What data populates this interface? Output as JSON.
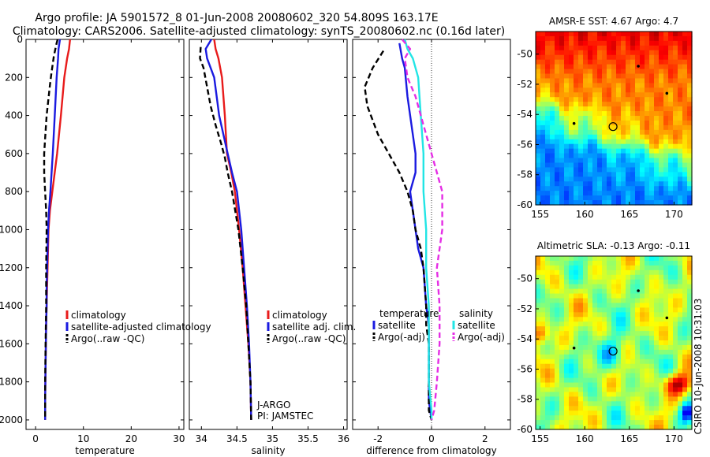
{
  "figure": {
    "title_line1": "Argo profile: JA 5901572_8 01-Jun-2008 20080602_320 54.809S 163.17E",
    "title_line2": "Climatology: CARS2006. Satellite-adjusted climatology: synTS_20080602.nc (0.16d later)",
    "side_label": "CSIRO 10-Jun-2008 10:31:03"
  },
  "colors": {
    "climatology": "#e81b1b",
    "satellite": "#1a1ae0",
    "argo": "#000000",
    "satellite_salinity": "#22e5e5",
    "argo_salinity_diff": "#e52ee5"
  },
  "chart_data": [
    {
      "type": "line",
      "id": "temperature",
      "xlabel": "temperature",
      "ylabel": "",
      "xlim": [
        -2,
        31
      ],
      "ylim": [
        2050,
        0
      ],
      "xticks": [
        0,
        10,
        20,
        30
      ],
      "yticks": [
        0,
        200,
        400,
        600,
        800,
        1000,
        1200,
        1400,
        1600,
        1800,
        2000
      ],
      "legend": [
        "climatology",
        "satellite-adjusted climatology",
        "Argo(..raw -QC)"
      ],
      "series": [
        {
          "name": "climatology",
          "role": "climatology",
          "x": [
            7.2,
            7.0,
            6.6,
            6.0,
            5.3,
            4.5,
            3.5,
            3.0,
            2.7,
            2.6,
            2.5,
            2.4,
            2.3,
            2.2,
            2.1,
            2.0,
            2.0
          ],
          "y": [
            0,
            50,
            100,
            200,
            400,
            600,
            800,
            900,
            1000,
            1100,
            1200,
            1300,
            1400,
            1500,
            1700,
            1900,
            2000
          ]
        },
        {
          "name": "satellite-adjusted climatology",
          "role": "satellite",
          "x": [
            5.1,
            4.8,
            4.7,
            4.4,
            4.0,
            3.6,
            3.1,
            2.8,
            2.6,
            2.5,
            2.4,
            2.3,
            2.3,
            2.2,
            2.1,
            2.0,
            2.0
          ],
          "y": [
            0,
            50,
            100,
            200,
            400,
            600,
            800,
            900,
            1000,
            1100,
            1200,
            1300,
            1400,
            1500,
            1700,
            1900,
            2000
          ]
        },
        {
          "name": "Argo(..raw -QC)",
          "role": "argo",
          "dashed": true,
          "x": [
            4.6,
            4.3,
            3.8,
            3.3,
            3.0,
            2.3,
            2.0,
            1.8,
            1.8,
            2.0,
            2.2,
            2.3,
            2.2,
            2.2,
            2.1,
            2.0,
            2.0,
            2.0,
            2.0
          ],
          "y": [
            0,
            30,
            90,
            180,
            240,
            400,
            520,
            600,
            700,
            800,
            900,
            1000,
            1200,
            1400,
            1600,
            1800,
            1900,
            1950,
            2000
          ]
        }
      ]
    },
    {
      "type": "line",
      "id": "salinity",
      "xlabel": "salinity",
      "ylabel": "",
      "xlim": [
        33.83,
        36.05
      ],
      "ylim": [
        2050,
        0
      ],
      "xticks": [
        34,
        34.5,
        35,
        35.5,
        36
      ],
      "legend": [
        "climatology",
        "satellite adj. clim.",
        "Argo(..raw -QC)"
      ],
      "annotations": [
        "J-ARGO",
        "PI: JAMSTEC"
      ],
      "series": [
        {
          "name": "climatology",
          "role": "climatology",
          "x": [
            34.18,
            34.2,
            34.24,
            34.29,
            34.33,
            34.36,
            34.42,
            34.47,
            34.53,
            34.58,
            34.62,
            34.66,
            34.69,
            34.7
          ],
          "y": [
            0,
            50,
            100,
            200,
            400,
            600,
            700,
            800,
            1000,
            1200,
            1400,
            1600,
            1800,
            2000
          ]
        },
        {
          "name": "satellite adj. clim.",
          "role": "satellite",
          "x": [
            34.14,
            34.06,
            34.08,
            34.18,
            34.25,
            34.31,
            34.37,
            34.43,
            34.5,
            34.56,
            34.6,
            34.64,
            34.67,
            34.69,
            34.7
          ],
          "y": [
            0,
            50,
            100,
            200,
            400,
            500,
            600,
            700,
            800,
            1000,
            1200,
            1400,
            1600,
            1800,
            2000
          ]
        },
        {
          "name": "Argo(..raw -QC)",
          "role": "argo",
          "dashed": true,
          "x": [
            33.99,
            33.98,
            34.03,
            34.08,
            34.13,
            34.2,
            34.28,
            34.33,
            34.37,
            34.43,
            34.52,
            34.58,
            34.63,
            34.66,
            34.69,
            34.7
          ],
          "y": [
            40,
            100,
            150,
            250,
            350,
            450,
            550,
            620,
            700,
            800,
            1000,
            1200,
            1400,
            1600,
            1800,
            2000
          ]
        }
      ]
    },
    {
      "type": "line",
      "id": "difference",
      "xlabel": "difference from climatology",
      "ylabel": "",
      "xlim": [
        -2.95,
        2.95
      ],
      "ylim": [
        2050,
        0
      ],
      "xticks": [
        -2,
        0,
        2
      ],
      "zero_line": true,
      "legend_titles": [
        "temperature",
        "salinity"
      ],
      "legend": [
        "satellite",
        "Argo(-adj)",
        "satellite",
        "Argo(-adj)"
      ],
      "series": [
        {
          "name": "satellite",
          "group": "temperature",
          "role": "satellite",
          "x": [
            -1.2,
            -1.1,
            -1.0,
            -0.9,
            -0.6,
            -0.6,
            -0.8,
            -0.7,
            -0.6,
            -0.5,
            -0.3,
            -0.2,
            -0.1,
            -0.1,
            -0.1,
            0.0
          ],
          "y": [
            20,
            100,
            150,
            300,
            600,
            700,
            800,
            900,
            1000,
            1100,
            1200,
            1400,
            1500,
            1700,
            1900,
            2000
          ]
        },
        {
          "name": "Argo(-adj)",
          "group": "temperature",
          "role": "argo",
          "dashed": true,
          "x": [
            -1.8,
            -2.2,
            -2.5,
            -2.4,
            -2.0,
            -1.6,
            -1.2,
            -0.9,
            -0.7,
            -0.6,
            -0.4,
            -0.3,
            -0.2,
            -0.2,
            -0.1,
            -0.1,
            -0.1,
            0.0
          ],
          "y": [
            60,
            150,
            250,
            350,
            500,
            600,
            700,
            800,
            900,
            1000,
            1100,
            1200,
            1400,
            1500,
            1600,
            1800,
            1950,
            2000
          ]
        },
        {
          "name": "satellite",
          "group": "salinity",
          "role": "satellite_salinity",
          "x": [
            -1.0,
            -0.9,
            -0.7,
            -0.5,
            -0.4,
            -0.3,
            -0.3,
            -0.2,
            -0.2,
            -0.1,
            -0.1,
            -0.1,
            0.0,
            0.0
          ],
          "y": [
            0,
            50,
            100,
            200,
            400,
            600,
            800,
            1000,
            1200,
            1400,
            1600,
            1800,
            1950,
            2000
          ]
        },
        {
          "name": "Argo(-adj)",
          "group": "salinity",
          "role": "argo_salinity_diff",
          "dashed": true,
          "x": [
            -1.1,
            -0.8,
            -1.0,
            -0.9,
            -0.6,
            -0.3,
            0.0,
            0.2,
            0.4,
            0.4,
            0.2,
            0.3,
            0.3,
            0.2,
            0.1,
            0.0
          ],
          "y": [
            0,
            50,
            100,
            200,
            300,
            450,
            600,
            700,
            800,
            1000,
            1200,
            1400,
            1600,
            1800,
            1950,
            2000
          ]
        }
      ]
    },
    {
      "type": "heatmap",
      "id": "sst",
      "title": "AMSR-E SST: 4.67 Argo: 4.7",
      "xlim": [
        154.5,
        172
      ],
      "ylim": [
        -60,
        -48.5
      ],
      "xticks": [
        155,
        160,
        165,
        170
      ],
      "yticks": [
        -50,
        -52,
        -54,
        -56,
        -58,
        -60
      ],
      "profile_marker": {
        "lon": 163.17,
        "lat": -54.809
      },
      "other_floats": [
        {
          "lon": 166,
          "lat": -50.8
        },
        {
          "lon": 169.2,
          "lat": -52.6
        },
        {
          "lon": 158.8,
          "lat": -54.6
        }
      ]
    },
    {
      "type": "heatmap",
      "id": "sla",
      "title": "Altimetric SLA: -0.13 Argo: -0.11",
      "xlim": [
        154.5,
        172
      ],
      "ylim": [
        -60,
        -48.5
      ],
      "xticks": [
        155,
        160,
        165,
        170
      ],
      "yticks": [
        -50,
        -52,
        -54,
        -56,
        -58,
        -60
      ],
      "profile_marker": {
        "lon": 163.17,
        "lat": -54.809
      },
      "other_floats": [
        {
          "lon": 166,
          "lat": -50.8
        },
        {
          "lon": 169.2,
          "lat": -52.6
        },
        {
          "lon": 158.8,
          "lat": -54.6
        }
      ]
    }
  ]
}
